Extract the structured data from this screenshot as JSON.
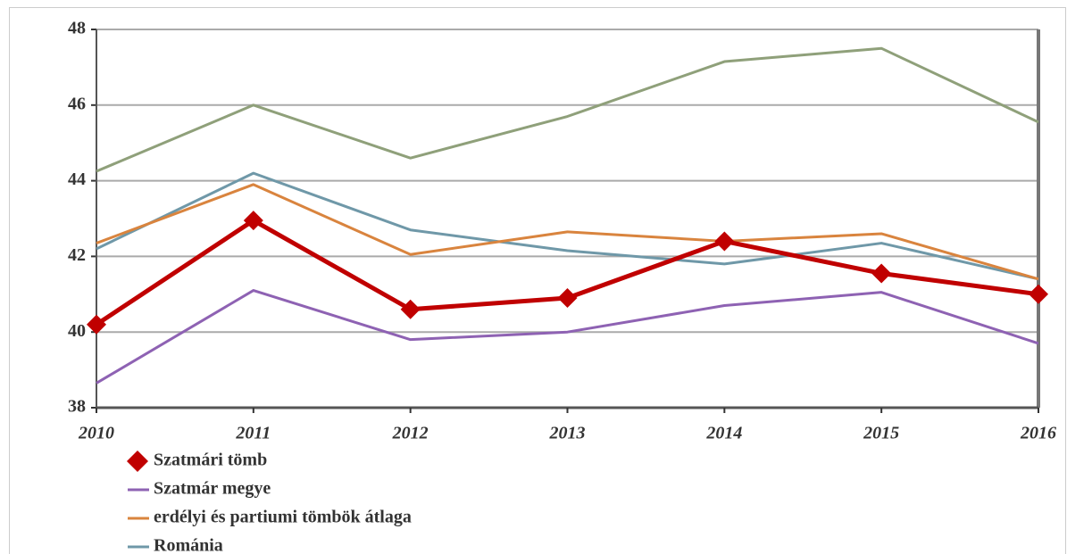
{
  "chart_data": {
    "type": "line",
    "categories": [
      "2010",
      "2011",
      "2012",
      "2013",
      "2014",
      "2015",
      "2016"
    ],
    "series": [
      {
        "name": "Szatmári tömb",
        "color": "#c00000",
        "marker": "diamond",
        "values": [
          40.2,
          42.95,
          40.6,
          40.9,
          42.4,
          41.55,
          41.0
        ]
      },
      {
        "name": "Szatmár megye",
        "color": "#8e62b3",
        "values": [
          38.65,
          41.1,
          39.8,
          40.0,
          40.7,
          41.05,
          39.7
        ]
      },
      {
        "name": "erdélyi és partiumi tömbök átlaga",
        "color": "#d9843e",
        "values": [
          42.35,
          43.9,
          42.05,
          42.65,
          42.4,
          42.6,
          41.4
        ]
      },
      {
        "name": "Románia",
        "color": "#6f98a8",
        "values": [
          42.2,
          44.2,
          42.7,
          42.15,
          41.8,
          42.35,
          41.4
        ]
      },
      {
        "color": "#8fa07a",
        "values": [
          44.25,
          46.0,
          44.6,
          45.7,
          47.15,
          47.5,
          45.55
        ]
      }
    ],
    "ylim": [
      38,
      48
    ],
    "yticks": [
      38,
      40,
      42,
      44,
      46,
      48
    ],
    "grid": true
  }
}
